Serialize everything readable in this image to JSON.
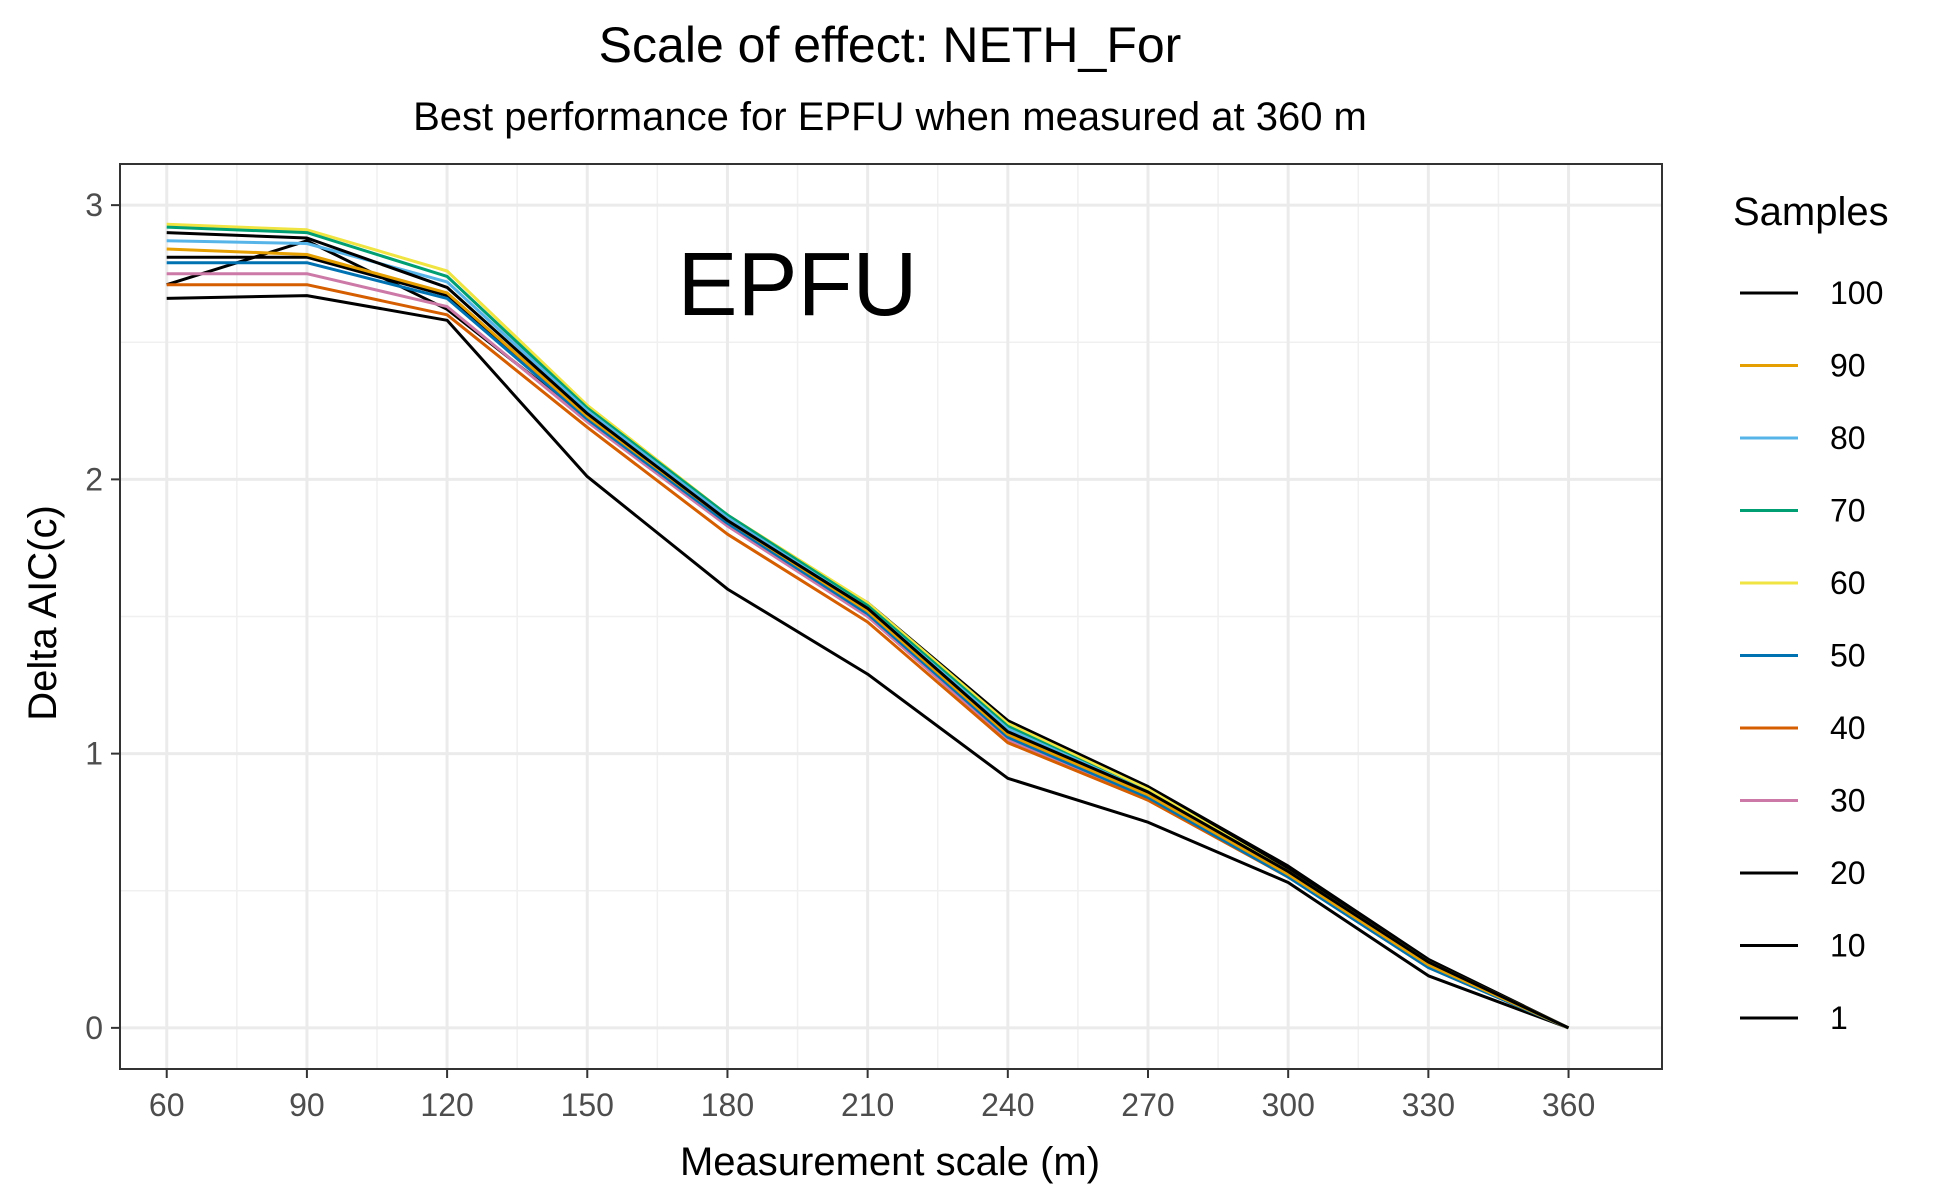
{
  "chart_data": {
    "type": "line",
    "title": "Scale of effect: NETH_For",
    "subtitle": "Best performance for EPFU when measured at 360 m",
    "xlabel": "Measurement scale (m)",
    "ylabel": "Delta AIC(c)",
    "annotation": "EPFU",
    "x": [
      60,
      90,
      120,
      150,
      180,
      210,
      240,
      270,
      300,
      330,
      360
    ],
    "xticks": [
      "60",
      "90",
      "120",
      "150",
      "180",
      "210",
      "240",
      "270",
      "300",
      "330",
      "360"
    ],
    "yticks": [
      "0",
      "1",
      "2",
      "3"
    ],
    "xlim": [
      50,
      380
    ],
    "ylim": [
      -0.15,
      3.15
    ],
    "grid": true,
    "legend_title": "Samples",
    "legend_position": "right",
    "series": [
      {
        "name": "100",
        "color": "#000000",
        "values": [
          2.9,
          2.88,
          2.7,
          2.24,
          1.85,
          1.53,
          1.08,
          0.86,
          0.57,
          0.24,
          0.0
        ]
      },
      {
        "name": "90",
        "color": "#E69F00",
        "values": [
          2.84,
          2.82,
          2.68,
          2.23,
          1.85,
          1.52,
          1.07,
          0.85,
          0.56,
          0.23,
          0.0
        ]
      },
      {
        "name": "80",
        "color": "#56B4E9",
        "values": [
          2.87,
          2.86,
          2.72,
          2.25,
          1.86,
          1.53,
          1.09,
          0.86,
          0.56,
          0.23,
          0.0
        ]
      },
      {
        "name": "70",
        "color": "#009E73",
        "values": [
          2.92,
          2.9,
          2.74,
          2.26,
          1.87,
          1.54,
          1.1,
          0.86,
          0.56,
          0.23,
          0.0
        ]
      },
      {
        "name": "60",
        "color": "#F0E442",
        "values": [
          2.93,
          2.91,
          2.76,
          2.27,
          1.87,
          1.55,
          1.11,
          0.87,
          0.57,
          0.24,
          0.0
        ]
      },
      {
        "name": "50",
        "color": "#0072B2",
        "values": [
          2.79,
          2.79,
          2.66,
          2.22,
          1.84,
          1.51,
          1.06,
          0.84,
          0.55,
          0.22,
          0.0
        ]
      },
      {
        "name": "40",
        "color": "#D55E00",
        "values": [
          2.71,
          2.71,
          2.6,
          2.19,
          1.8,
          1.48,
          1.04,
          0.83,
          0.55,
          0.22,
          0.0
        ]
      },
      {
        "name": "30",
        "color": "#CC79A7",
        "values": [
          2.75,
          2.75,
          2.63,
          2.21,
          1.83,
          1.5,
          1.05,
          0.84,
          0.55,
          0.23,
          0.0
        ]
      },
      {
        "name": "20",
        "color": "#000000",
        "values": [
          2.81,
          2.81,
          2.67,
          2.23,
          1.85,
          1.53,
          1.12,
          0.88,
          0.59,
          0.25,
          0.0
        ]
      },
      {
        "name": "10",
        "color": "#000000",
        "values": [
          2.71,
          2.87,
          2.62,
          2.22,
          1.86,
          1.55,
          1.12,
          0.87,
          0.58,
          0.24,
          0.0
        ]
      },
      {
        "name": "1",
        "color": "#000000",
        "values": [
          2.66,
          2.67,
          2.58,
          2.01,
          1.6,
          1.29,
          0.91,
          0.75,
          0.53,
          0.19,
          0.0
        ]
      }
    ]
  }
}
